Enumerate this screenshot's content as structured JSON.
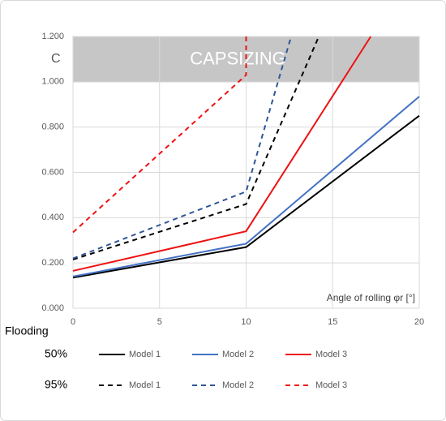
{
  "chart_data": {
    "type": "line",
    "y_label": "C",
    "x_label": "Angle of rolling φr [°]",
    "legend_title": "Flooding",
    "xlim": [
      0,
      20
    ],
    "xticks": [
      0,
      5,
      10,
      15,
      20
    ],
    "ylim": [
      0,
      1.2
    ],
    "yticks": [
      {
        "value": 0,
        "label": "0.000"
      },
      {
        "value": 0.2,
        "label": "0.200"
      },
      {
        "value": 0.4,
        "label": "0.400"
      },
      {
        "value": 0.6,
        "label": "0.600"
      },
      {
        "value": 0.8,
        "label": "0.800"
      },
      {
        "value": 1.0,
        "label": "1.000"
      },
      {
        "value": 1.2,
        "label": "1.200"
      }
    ],
    "grid": true,
    "band": {
      "label": "CAPSIZING",
      "range": [
        1.0,
        1.2
      ],
      "color": "#c6c6c6"
    },
    "series_groups": [
      {
        "name": "50%",
        "dashed": false,
        "series": [
          {
            "name": "Model 1",
            "color": "#000000",
            "x": [
              0,
              10,
              20
            ],
            "values": [
              0.135,
              0.27,
              0.85
            ]
          },
          {
            "name": "Model 2",
            "color": "#4472c4",
            "x": [
              0,
              10,
              20
            ],
            "values": [
              0.14,
              0.285,
              0.935
            ]
          },
          {
            "name": "Model 3",
            "color": "#ee1111",
            "x": [
              0,
              10,
              17.2
            ],
            "values": [
              0.165,
              0.34,
              1.2
            ]
          }
        ]
      },
      {
        "name": "95%",
        "dashed": true,
        "series": [
          {
            "name": "Model 1",
            "color": "#000000",
            "x": [
              0,
              10,
              14.2
            ],
            "values": [
              0.215,
              0.46,
              1.2
            ]
          },
          {
            "name": "Model 2",
            "color": "#2f5597",
            "x": [
              0,
              10,
              12.6
            ],
            "values": [
              0.22,
              0.515,
              1.2
            ]
          },
          {
            "name": "Model 3",
            "color": "#ee1111",
            "x": [
              0,
              10,
              10
            ],
            "values": [
              0.335,
              1.03,
              1.2
            ]
          }
        ]
      }
    ]
  }
}
